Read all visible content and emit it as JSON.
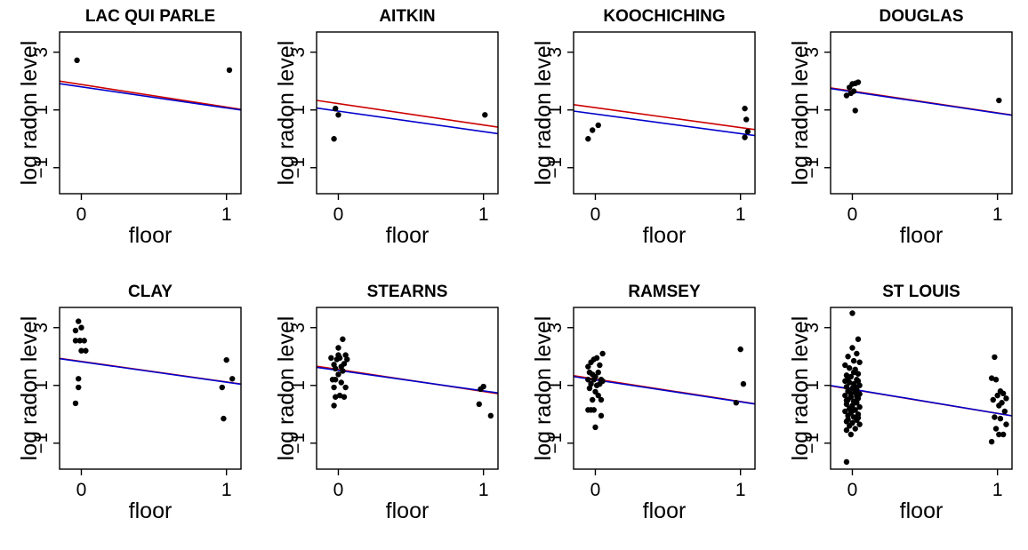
{
  "chart_data": [
    {
      "type": "scatter",
      "title": "LAC QUI PARLE",
      "xlabel": "floor",
      "ylabel": "log radon level",
      "xlim": [
        -0.15,
        1.1
      ],
      "ylim": [
        -1.9,
        3.7
      ],
      "xticks": [
        {
          "v": 0,
          "label": "0"
        },
        {
          "v": 1,
          "label": "1"
        }
      ],
      "yticks": [
        {
          "v": -1,
          "label": "−1"
        },
        {
          "v": 1,
          "label": "1"
        },
        {
          "v": 3,
          "label": "3"
        }
      ],
      "points": [
        [
          -0.03,
          2.72
        ],
        [
          1.02,
          2.38
        ]
      ],
      "lines": [
        {
          "color": "#cc0000",
          "intercept": 1.88,
          "slope": -0.78
        },
        {
          "color": "#0000cc",
          "intercept": 1.8,
          "slope": -0.73
        }
      ]
    },
    {
      "type": "scatter",
      "title": "AITKIN",
      "xlabel": "floor",
      "ylabel": "log radon level",
      "xlim": [
        -0.15,
        1.1
      ],
      "ylim": [
        -1.9,
        3.7
      ],
      "xticks": [
        {
          "v": 0,
          "label": "0"
        },
        {
          "v": 1,
          "label": "1"
        }
      ],
      "yticks": [
        {
          "v": -1,
          "label": "−1"
        },
        {
          "v": 1,
          "label": "1"
        },
        {
          "v": 3,
          "label": "3"
        }
      ],
      "points": [
        [
          -0.02,
          1.05
        ],
        [
          -0.03,
          0.0
        ],
        [
          0.0,
          0.83
        ],
        [
          1.01,
          0.83
        ]
      ],
      "lines": [
        {
          "color": "#cc0000",
          "intercept": 1.22,
          "slope": -0.74
        },
        {
          "color": "#0000cc",
          "intercept": 0.96,
          "slope": -0.71
        }
      ]
    },
    {
      "type": "scatter",
      "title": "KOOCHICHING",
      "xlabel": "floor",
      "ylabel": "log radon level",
      "xlim": [
        -0.15,
        1.1
      ],
      "ylim": [
        -1.9,
        3.7
      ],
      "xticks": [
        {
          "v": 0,
          "label": "0"
        },
        {
          "v": 1,
          "label": "1"
        }
      ],
      "yticks": [
        {
          "v": -1,
          "label": "−1"
        },
        {
          "v": 1,
          "label": "1"
        },
        {
          "v": 3,
          "label": "3"
        }
      ],
      "points": [
        [
          -0.05,
          0.0
        ],
        [
          -0.02,
          0.3
        ],
        [
          0.02,
          0.47
        ],
        [
          1.03,
          1.05
        ],
        [
          1.04,
          0.67
        ],
        [
          1.05,
          0.25
        ],
        [
          1.03,
          0.05
        ]
      ],
      "lines": [
        {
          "color": "#cc0000",
          "intercept": 1.08,
          "slope": -0.69
        },
        {
          "color": "#0000cc",
          "intercept": 0.86,
          "slope": -0.68
        }
      ]
    },
    {
      "type": "scatter",
      "title": "DOUGLAS",
      "xlabel": "floor",
      "ylabel": "log radon level",
      "xlim": [
        -0.15,
        1.1
      ],
      "ylim": [
        -1.9,
        3.7
      ],
      "xticks": [
        {
          "v": 0,
          "label": "0"
        },
        {
          "v": 1,
          "label": "1"
        }
      ],
      "yticks": [
        {
          "v": -1,
          "label": "−1"
        },
        {
          "v": 1,
          "label": "1"
        },
        {
          "v": 3,
          "label": "3"
        }
      ],
      "points": [
        [
          -0.04,
          1.5
        ],
        [
          -0.02,
          1.78
        ],
        [
          -0.01,
          1.58
        ],
        [
          0.0,
          1.9
        ],
        [
          0.01,
          1.65
        ],
        [
          0.02,
          1.92
        ],
        [
          0.04,
          1.96
        ],
        [
          0.02,
          0.98
        ],
        [
          1.01,
          1.33
        ]
      ],
      "lines": [
        {
          "color": "#cc0000",
          "intercept": 1.65,
          "slope": -0.75
        },
        {
          "color": "#0000cc",
          "intercept": 1.63,
          "slope": -0.74
        }
      ]
    },
    {
      "type": "scatter",
      "title": "CLAY",
      "xlabel": "floor",
      "ylabel": "log radon level",
      "xlim": [
        -0.15,
        1.1
      ],
      "ylim": [
        -1.9,
        3.7
      ],
      "xticks": [
        {
          "v": 0,
          "label": "0"
        },
        {
          "v": 1,
          "label": "1"
        }
      ],
      "yticks": [
        {
          "v": -1,
          "label": "−1"
        },
        {
          "v": 1,
          "label": "1"
        },
        {
          "v": 3,
          "label": "3"
        }
      ],
      "points": [
        [
          -0.04,
          2.9
        ],
        [
          -0.02,
          3.22
        ],
        [
          0.0,
          3.0
        ],
        [
          -0.04,
          2.55
        ],
        [
          -0.01,
          2.55
        ],
        [
          0.02,
          2.55
        ],
        [
          0.0,
          2.2
        ],
        [
          0.03,
          2.2
        ],
        [
          -0.02,
          1.23
        ],
        [
          -0.02,
          0.93
        ],
        [
          -0.04,
          0.38
        ],
        [
          0.97,
          0.93
        ],
        [
          0.98,
          -0.15
        ],
        [
          1.0,
          1.88
        ],
        [
          1.04,
          1.23
        ]
      ],
      "lines": [
        {
          "color": "#cc0000",
          "intercept": 1.83,
          "slope": -0.71
        },
        {
          "color": "#0000cc",
          "intercept": 1.82,
          "slope": -0.71
        }
      ]
    },
    {
      "type": "scatter",
      "title": "STEARNS",
      "xlabel": "floor",
      "ylabel": "log radon level",
      "xlim": [
        -0.15,
        1.1
      ],
      "ylim": [
        -1.9,
        3.7
      ],
      "xticks": [
        {
          "v": 0,
          "label": "0"
        },
        {
          "v": 1,
          "label": "1"
        }
      ],
      "yticks": [
        {
          "v": -1,
          "label": "−1"
        },
        {
          "v": 1,
          "label": "1"
        },
        {
          "v": 3,
          "label": "3"
        }
      ],
      "points": [
        [
          -0.05,
          1.95
        ],
        [
          -0.03,
          1.72
        ],
        [
          -0.02,
          1.58
        ],
        [
          -0.01,
          1.9
        ],
        [
          0.0,
          2.05
        ],
        [
          0.01,
          1.95
        ],
        [
          0.02,
          1.65
        ],
        [
          0.03,
          1.5
        ],
        [
          0.04,
          1.75
        ],
        [
          0.05,
          2.05
        ],
        [
          0.06,
          1.9
        ],
        [
          0.03,
          2.6
        ],
        [
          0.0,
          2.3
        ],
        [
          -0.04,
          1.2
        ],
        [
          -0.02,
          1.2
        ],
        [
          0.0,
          1.38
        ],
        [
          0.02,
          1.1
        ],
        [
          -0.03,
          0.93
        ],
        [
          0.05,
          0.93
        ],
        [
          0.01,
          0.65
        ],
        [
          0.04,
          0.6
        ],
        [
          -0.02,
          0.6
        ],
        [
          -0.03,
          0.3
        ],
        [
          0.98,
          0.87
        ],
        [
          1.0,
          0.96
        ],
        [
          0.97,
          0.35
        ],
        [
          1.05,
          -0.05
        ]
      ],
      "lines": [
        {
          "color": "#cc0000",
          "intercept": 1.55,
          "slope": -0.76
        },
        {
          "color": "#0000cc",
          "intercept": 1.52,
          "slope": -0.71
        }
      ]
    },
    {
      "type": "scatter",
      "title": "RAMSEY",
      "xlabel": "floor",
      "ylabel": "log radon level",
      "xlim": [
        -0.15,
        1.1
      ],
      "ylim": [
        -1.9,
        3.7
      ],
      "xticks": [
        {
          "v": 0,
          "label": "0"
        },
        {
          "v": 1,
          "label": "1"
        }
      ],
      "yticks": [
        {
          "v": -1,
          "label": "−1"
        },
        {
          "v": 1,
          "label": "1"
        },
        {
          "v": 3,
          "label": "3"
        }
      ],
      "points": [
        [
          -0.05,
          1.65
        ],
        [
          -0.03,
          1.8
        ],
        [
          -0.01,
          1.9
        ],
        [
          0.01,
          1.95
        ],
        [
          0.03,
          1.7
        ],
        [
          0.05,
          2.1
        ],
        [
          -0.04,
          1.45
        ],
        [
          -0.02,
          1.38
        ],
        [
          0.0,
          1.3
        ],
        [
          0.02,
          1.45
        ],
        [
          0.04,
          1.2
        ],
        [
          -0.05,
          1.2
        ],
        [
          -0.03,
          1.05
        ],
        [
          -0.01,
          1.2
        ],
        [
          0.01,
          1.0
        ],
        [
          0.03,
          1.05
        ],
        [
          0.05,
          1.15
        ],
        [
          -0.04,
          0.9
        ],
        [
          0.0,
          0.78
        ],
        [
          0.02,
          0.65
        ],
        [
          -0.02,
          0.5
        ],
        [
          0.04,
          0.5
        ],
        [
          -0.05,
          0.15
        ],
        [
          -0.03,
          0.15
        ],
        [
          -0.01,
          0.15
        ],
        [
          0.04,
          -0.05
        ],
        [
          0.0,
          -0.45
        ],
        [
          0.97,
          0.4
        ],
        [
          1.0,
          2.25
        ],
        [
          1.02,
          1.05
        ]
      ],
      "lines": [
        {
          "color": "#cc0000",
          "intercept": 1.22,
          "slope": -0.78
        },
        {
          "color": "#0000cc",
          "intercept": 1.19,
          "slope": -0.76
        }
      ]
    },
    {
      "type": "scatter",
      "title": "ST LOUIS",
      "xlabel": "floor",
      "ylabel": "log radon level",
      "xlim": [
        -0.15,
        1.1
      ],
      "ylim": [
        -1.9,
        3.7
      ],
      "xticks": [
        {
          "v": 0,
          "label": "0"
        },
        {
          "v": 1,
          "label": "1"
        }
      ],
      "yticks": [
        {
          "v": -1,
          "label": "−1"
        },
        {
          "v": 1,
          "label": "1"
        },
        {
          "v": 3,
          "label": "3"
        }
      ],
      "points": [
        [
          0.0,
          3.5
        ],
        [
          0.04,
          2.6
        ],
        [
          0.0,
          2.3
        ],
        [
          0.03,
          2.1
        ],
        [
          -0.03,
          2.0
        ],
        [
          0.01,
          1.85
        ],
        [
          0.05,
          1.8
        ],
        [
          -0.05,
          1.7
        ],
        [
          -0.02,
          1.6
        ],
        [
          0.02,
          1.55
        ],
        [
          0.04,
          1.4
        ],
        [
          -0.04,
          1.35
        ],
        [
          -0.01,
          1.3
        ],
        [
          0.03,
          1.2
        ],
        [
          -0.05,
          1.15
        ],
        [
          -0.02,
          1.1
        ],
        [
          0.01,
          1.05
        ],
        [
          0.05,
          1.0
        ],
        [
          -0.04,
          0.95
        ],
        [
          0.0,
          0.9
        ],
        [
          0.03,
          0.85
        ],
        [
          -0.03,
          0.8
        ],
        [
          0.02,
          0.75
        ],
        [
          0.05,
          0.7
        ],
        [
          -0.05,
          0.65
        ],
        [
          -0.01,
          0.6
        ],
        [
          0.04,
          0.55
        ],
        [
          -0.03,
          0.5
        ],
        [
          0.01,
          0.45
        ],
        [
          0.03,
          0.4
        ],
        [
          -0.04,
          0.35
        ],
        [
          0.0,
          0.3
        ],
        [
          0.05,
          0.25
        ],
        [
          -0.02,
          0.2
        ],
        [
          0.02,
          0.15
        ],
        [
          -0.05,
          0.1
        ],
        [
          -0.01,
          0.05
        ],
        [
          0.04,
          0.0
        ],
        [
          -0.03,
          -0.05
        ],
        [
          0.01,
          -0.1
        ],
        [
          0.03,
          -0.2
        ],
        [
          -0.04,
          -0.25
        ],
        [
          0.0,
          -0.3
        ],
        [
          0.05,
          -0.35
        ],
        [
          -0.02,
          -0.4
        ],
        [
          0.02,
          -0.5
        ],
        [
          -0.01,
          -0.7
        ],
        [
          -0.04,
          -0.55
        ],
        [
          0.01,
          1.45
        ],
        [
          -0.03,
          1.25
        ],
        [
          0.04,
          1.15
        ],
        [
          0.02,
          0.95
        ],
        [
          -0.01,
          0.72
        ],
        [
          -0.04,
          0.48
        ],
        [
          0.03,
          0.62
        ],
        [
          0.0,
          0.12
        ],
        [
          -0.03,
          -0.18
        ],
        [
          0.04,
          -0.12
        ],
        [
          -0.04,
          -1.65
        ],
        [
          0.98,
          1.98
        ],
        [
          0.96,
          1.25
        ],
        [
          0.99,
          1.2
        ],
        [
          1.02,
          0.8
        ],
        [
          1.04,
          0.72
        ],
        [
          1.0,
          0.65
        ],
        [
          1.06,
          0.55
        ],
        [
          1.03,
          0.4
        ],
        [
          0.97,
          0.5
        ],
        [
          1.01,
          0.3
        ],
        [
          1.05,
          0.1
        ],
        [
          0.98,
          -0.1
        ],
        [
          1.02,
          -0.15
        ],
        [
          1.06,
          -0.35
        ],
        [
          0.99,
          -0.5
        ],
        [
          1.04,
          -0.7
        ],
        [
          0.96,
          -0.95
        ],
        [
          1.01,
          -0.7
        ]
      ],
      "lines": [
        {
          "color": "#cc0000",
          "intercept": 0.86,
          "slope": -0.83
        },
        {
          "color": "#0000cc",
          "intercept": 0.87,
          "slope": -0.84
        }
      ]
    }
  ]
}
